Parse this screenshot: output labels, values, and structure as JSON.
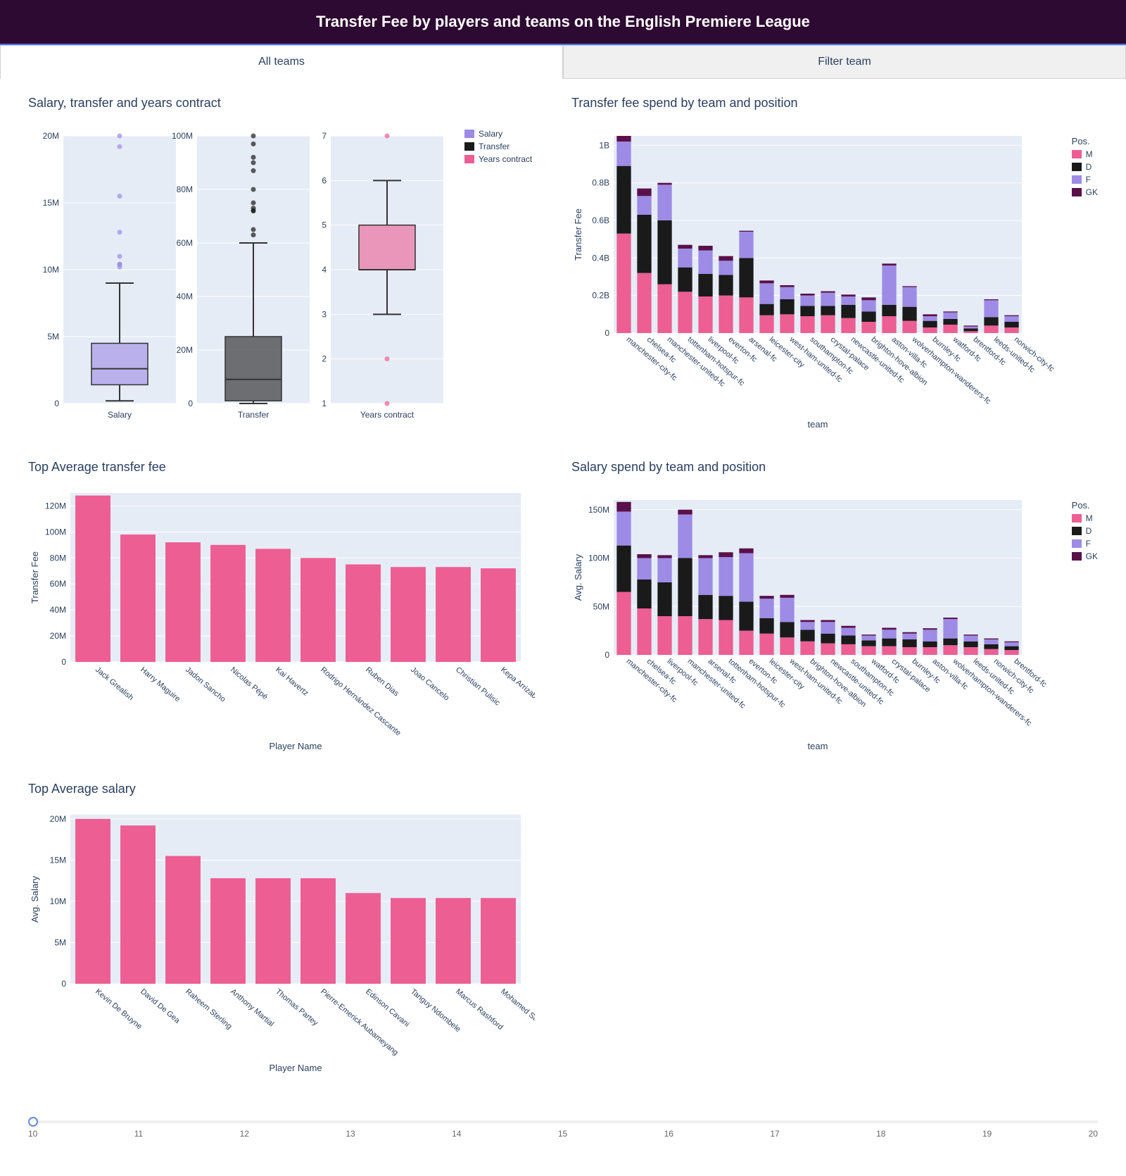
{
  "header": {
    "title": "Transfer Fee by players and teams on the English Premiere League"
  },
  "tabs": {
    "active": "All teams",
    "other": "Filter team"
  },
  "colors": {
    "purple": "#9d8be6",
    "dark": "#1a1a1a",
    "pink": "#ed5e93",
    "magenta": "#5a1048",
    "plot_bg": "#e5ecf6",
    "grid": "#ffffff",
    "text": "#2a3f5f"
  },
  "boxplots": {
    "title": "Salary, transfer and years contract",
    "legend": [
      "Salary",
      "Transfer",
      "Years contract"
    ],
    "legend_colors": [
      "#9d8be6",
      "#1a1a1a",
      "#ed5e93"
    ],
    "panels": [
      {
        "name": "Salary",
        "color": "#9d8be6",
        "ylim": [
          0,
          20000000
        ],
        "yticks": [
          0,
          5000000,
          10000000,
          15000000,
          20000000
        ],
        "ytick_labels": [
          "0",
          "5M",
          "10M",
          "15M",
          "20M"
        ],
        "q1": 1400000,
        "median": 2600000,
        "q3": 4500000,
        "whisker_low": 200000,
        "whisker_high": 9000000,
        "outliers": [
          10200000,
          10400000,
          10400000,
          10400000,
          11000000,
          12800000,
          15500000,
          19200000,
          20000000
        ]
      },
      {
        "name": "Transfer",
        "color": "#1a1a1a",
        "ylim": [
          0,
          100000000
        ],
        "yticks": [
          0,
          20000000,
          40000000,
          60000000,
          80000000,
          100000000
        ],
        "ytick_labels": [
          "0",
          "20M",
          "40M",
          "60M",
          "80M",
          "100M"
        ],
        "q1": 1000000,
        "median": 9000000,
        "q3": 25000000,
        "whisker_low": 0,
        "whisker_high": 60000000,
        "outliers": [
          63000000,
          65000000,
          72000000,
          72000000,
          73000000,
          75000000,
          80000000,
          87000000,
          90000000,
          92000000,
          97000000,
          100000000
        ]
      },
      {
        "name": "Years contract",
        "color": "#ed5e93",
        "ylim": [
          1,
          7
        ],
        "yticks": [
          1,
          2,
          3,
          4,
          5,
          6,
          7
        ],
        "ytick_labels": [
          "1",
          "2",
          "3",
          "4",
          "5",
          "6",
          "7"
        ],
        "q1": 4,
        "median": 4,
        "q3": 5,
        "whisker_low": 3,
        "whisker_high": 6,
        "outliers": [
          1,
          2,
          7
        ]
      }
    ]
  },
  "transfer_by_team": {
    "title": "Transfer fee spend by team and position",
    "ylabel": "Transfer Fee",
    "xlabel": "team",
    "ylim": [
      0,
      1050000000
    ],
    "yticks": [
      0,
      200000000,
      400000000,
      600000000,
      800000000,
      1000000000
    ],
    "ytick_labels": [
      "0",
      "0.2B",
      "0.4B",
      "0.6B",
      "0.8B",
      "1B"
    ],
    "legend_title": "Pos.",
    "legend": [
      {
        "label": "M",
        "color": "#ed5e93"
      },
      {
        "label": "D",
        "color": "#1a1a1a"
      },
      {
        "label": "F",
        "color": "#9d8be6"
      },
      {
        "label": "GK",
        "color": "#5a1048"
      }
    ],
    "teams": [
      "manchester-city-fc",
      "chelsea-fc",
      "manchester-united-fc",
      "tottenham-hotspur-fc",
      "liverpool-fc",
      "everton-fc",
      "arsenal-fc",
      "leicester-city",
      "west-ham-united-fc",
      "southampton-fc",
      "crystal-palace",
      "newcastle-united-fc",
      "brighton-hove-albion",
      "aston-villa-fc",
      "wolverhampton-wanderers-fc",
      "burnley-fc",
      "watford-fc",
      "brentford-fc",
      "leeds-united-fc",
      "norwich-city-fc"
    ],
    "stacks": {
      "M": [
        530000000,
        320000000,
        260000000,
        220000000,
        195000000,
        200000000,
        190000000,
        95000000,
        100000000,
        90000000,
        95000000,
        80000000,
        60000000,
        90000000,
        65000000,
        30000000,
        45000000,
        10000000,
        40000000,
        30000000
      ],
      "D": [
        360000000,
        310000000,
        340000000,
        130000000,
        120000000,
        110000000,
        210000000,
        60000000,
        80000000,
        55000000,
        50000000,
        70000000,
        55000000,
        60000000,
        75000000,
        35000000,
        30000000,
        15000000,
        45000000,
        30000000
      ],
      "F": [
        130000000,
        100000000,
        190000000,
        100000000,
        125000000,
        75000000,
        140000000,
        110000000,
        65000000,
        55000000,
        70000000,
        45000000,
        60000000,
        210000000,
        105000000,
        25000000,
        35000000,
        10000000,
        90000000,
        30000000
      ],
      "GK": [
        30000000,
        40000000,
        10000000,
        20000000,
        25000000,
        25000000,
        5000000,
        15000000,
        10000000,
        10000000,
        8000000,
        10000000,
        15000000,
        10000000,
        5000000,
        10000000,
        5000000,
        5000000,
        5000000,
        5000000
      ]
    }
  },
  "top_transfer": {
    "title": "Top Average transfer fee",
    "ylabel": "Transfer Fee",
    "xlabel": "Player Name",
    "ylim": [
      0,
      130000000
    ],
    "yticks": [
      0,
      20000000,
      40000000,
      60000000,
      80000000,
      100000000,
      120000000
    ],
    "ytick_labels": [
      "0",
      "20M",
      "40M",
      "60M",
      "80M",
      "100M",
      "120M"
    ],
    "color": "#ed5e93",
    "bars": [
      {
        "name": "Jack Grealish",
        "value": 128000000
      },
      {
        "name": "Harry Maguire",
        "value": 98000000
      },
      {
        "name": "Jadon Sancho",
        "value": 92000000
      },
      {
        "name": "Nicolas Pépé",
        "value": 90000000
      },
      {
        "name": "Kai Havertz",
        "value": 87000000
      },
      {
        "name": "Rodrigo Hernández Cascante",
        "value": 80000000
      },
      {
        "name": "Ruben Dias",
        "value": 75000000
      },
      {
        "name": "Joao Cancelo",
        "value": 73000000
      },
      {
        "name": "Christian Pulisic",
        "value": 73000000
      },
      {
        "name": "Kepa Arrizabalaga",
        "value": 72000000
      }
    ]
  },
  "salary_by_team": {
    "title": "Salary spend by team and position",
    "ylabel": "Avg. Salary",
    "xlabel": "team",
    "ylim": [
      0,
      160000000
    ],
    "yticks": [
      0,
      50000000,
      100000000,
      150000000
    ],
    "ytick_labels": [
      "0",
      "50M",
      "100M",
      "150M"
    ],
    "legend_title": "Pos.",
    "legend": [
      {
        "label": "M",
        "color": "#ed5e93"
      },
      {
        "label": "D",
        "color": "#1a1a1a"
      },
      {
        "label": "F",
        "color": "#9d8be6"
      },
      {
        "label": "GK",
        "color": "#5a1048"
      }
    ],
    "teams": [
      "manchester-city-fc",
      "chelsea-fc",
      "liverpool-fc",
      "manchester-united-fc",
      "arsenal-fc",
      "tottenham-hotspur-fc",
      "everton-fc",
      "leicester-city",
      "west-ham-united-fc",
      "brighton-hove-albion",
      "newcastle-united-fc",
      "southampton-fc",
      "watford-fc",
      "crystal-palace",
      "burnley-fc",
      "aston-villa-fc",
      "wolverhampton-wanderers-fc",
      "leeds-united-fc",
      "norwich-city-fc",
      "brentford-fc"
    ],
    "stacks": {
      "M": [
        65000000,
        48000000,
        40000000,
        40000000,
        37000000,
        36000000,
        25000000,
        22000000,
        18000000,
        14000000,
        12000000,
        11000000,
        9000000,
        9000000,
        8000000,
        8000000,
        10000000,
        8000000,
        6000000,
        5000000
      ],
      "D": [
        48000000,
        30000000,
        35000000,
        60000000,
        25000000,
        25000000,
        30000000,
        16000000,
        16000000,
        12000000,
        10000000,
        9000000,
        6000000,
        8000000,
        8000000,
        6000000,
        7000000,
        6000000,
        5000000,
        4000000
      ],
      "F": [
        35000000,
        22000000,
        25000000,
        45000000,
        38000000,
        40000000,
        50000000,
        20000000,
        25000000,
        8000000,
        12000000,
        8000000,
        5000000,
        9000000,
        6000000,
        12000000,
        20000000,
        6000000,
        5000000,
        4000000
      ],
      "GK": [
        10000000,
        4000000,
        3000000,
        5000000,
        3000000,
        5000000,
        5000000,
        3000000,
        3000000,
        2000000,
        2000000,
        2000000,
        1000000,
        2000000,
        1500000,
        1500000,
        1500000,
        1000000,
        1000000,
        1000000
      ]
    }
  },
  "top_salary": {
    "title": "Top Average salary",
    "ylabel": "Avg. Salary",
    "xlabel": "Player Name",
    "ylim": [
      0,
      20500000
    ],
    "yticks": [
      0,
      5000000,
      10000000,
      15000000,
      20000000
    ],
    "ytick_labels": [
      "0",
      "5M",
      "10M",
      "15M",
      "20M"
    ],
    "color": "#ed5e93",
    "bars": [
      {
        "name": "Kevin De Bruyne",
        "value": 20000000
      },
      {
        "name": "David De Gea",
        "value": 19200000
      },
      {
        "name": "Raheem Sterling",
        "value": 15500000
      },
      {
        "name": "Anthony Martial",
        "value": 12800000
      },
      {
        "name": "Thomas Partey",
        "value": 12800000
      },
      {
        "name": "Pierre-Emerick Aubameyang",
        "value": 12800000
      },
      {
        "name": "Edinson Cavani",
        "value": 11000000
      },
      {
        "name": "Tanguy Ndombele",
        "value": 10400000
      },
      {
        "name": "Marcus Rashford",
        "value": 10400000
      },
      {
        "name": "Mohamed Salah",
        "value": 10400000
      }
    ]
  },
  "slider": {
    "min": 10,
    "max": 20,
    "value": 10,
    "ticks": [
      10,
      11,
      12,
      13,
      14,
      15,
      16,
      17,
      18,
      19,
      20
    ]
  }
}
